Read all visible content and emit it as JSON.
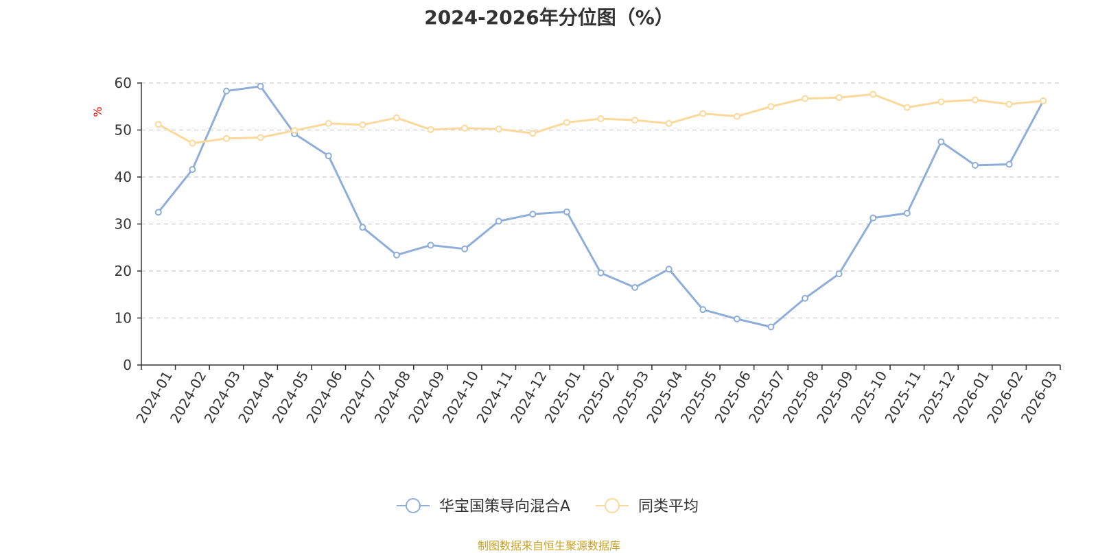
{
  "chart_data": {
    "type": "line",
    "title": "2024-2026年分位图（%）",
    "ylabel": "%",
    "ylim": [
      0,
      60
    ],
    "yticks": [
      0,
      10,
      20,
      30,
      40,
      50,
      60
    ],
    "grid": true,
    "legend_position": "bottom",
    "x": [
      "2024-01",
      "2024-02",
      "2024-03",
      "2024-04",
      "2024-05",
      "2024-06",
      "2024-07",
      "2024-08",
      "2024-09",
      "2024-10",
      "2024-11",
      "2024-12",
      "2025-01",
      "2025-02",
      "2025-03",
      "2025-04",
      "2025-05",
      "2025-06",
      "2025-07",
      "2025-08",
      "2025-09",
      "2025-10",
      "2025-11",
      "2025-12",
      "2026-01",
      "2026-02",
      "2026-03"
    ],
    "series": [
      {
        "name": "华宝国策导向混合A",
        "color": "#8eaed9",
        "values": [
          32.5,
          41.6,
          58.3,
          59.3,
          49.2,
          44.5,
          29.3,
          23.4,
          25.5,
          24.7,
          30.6,
          32.1,
          32.6,
          19.6,
          16.5,
          20.4,
          11.8,
          9.8,
          8.1,
          14.2,
          19.4,
          31.3,
          32.3,
          47.5,
          42.5,
          42.7,
          56.2
        ]
      },
      {
        "name": "同类平均",
        "color": "#fcd89a",
        "values": [
          51.2,
          47.2,
          48.2,
          48.4,
          49.9,
          51.4,
          51.1,
          52.6,
          50.1,
          50.4,
          50.2,
          49.3,
          51.6,
          52.4,
          52.1,
          51.4,
          53.5,
          52.9,
          55.0,
          56.7,
          56.9,
          57.6,
          54.8,
          56.0,
          56.4,
          55.5,
          56.2
        ]
      }
    ]
  },
  "footer": {
    "source": "制图数据来自恒生聚源数据库"
  }
}
